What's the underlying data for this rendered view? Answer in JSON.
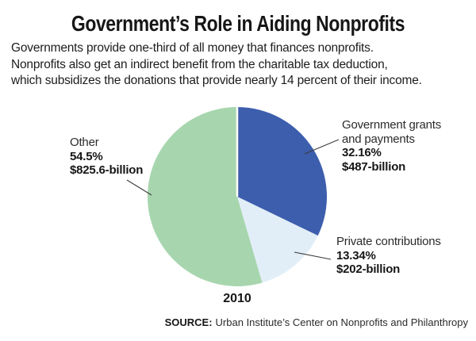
{
  "header": {
    "title": "Government’s Role in Aiding Nonprofits",
    "description_lines": [
      "Governments provide one-third of all money that finances nonprofits.",
      "Nonprofits also get an indirect benefit from the charitable tax deduction,",
      "which subsidizes the donations that provide nearly 14 percent of their income."
    ]
  },
  "chart_data": {
    "type": "pie",
    "title": "Government’s Role in Aiding Nonprofits",
    "year_label": "2010",
    "start_angle_deg": 0,
    "direction": "clockwise",
    "legend_position": "callouts",
    "slices": [
      {
        "label": "Government grants and payments",
        "value_pct": 32.16,
        "pct_label": "32.16%",
        "amount_label": "$487-billion",
        "color": "#3d5ead"
      },
      {
        "label": "Private contributions",
        "value_pct": 13.34,
        "pct_label": "13.34%",
        "amount_label": "$202-billion",
        "color": "#e2eef7"
      },
      {
        "label": "Other",
        "value_pct": 54.5,
        "pct_label": "54.5%",
        "amount_label": "$825.6-billion",
        "color": "#a7d6ae"
      }
    ]
  },
  "footer": {
    "source_prefix": "SOURCE:",
    "source_text": "Urban Institute’s Center on Nonprofits and Philanthropy"
  }
}
